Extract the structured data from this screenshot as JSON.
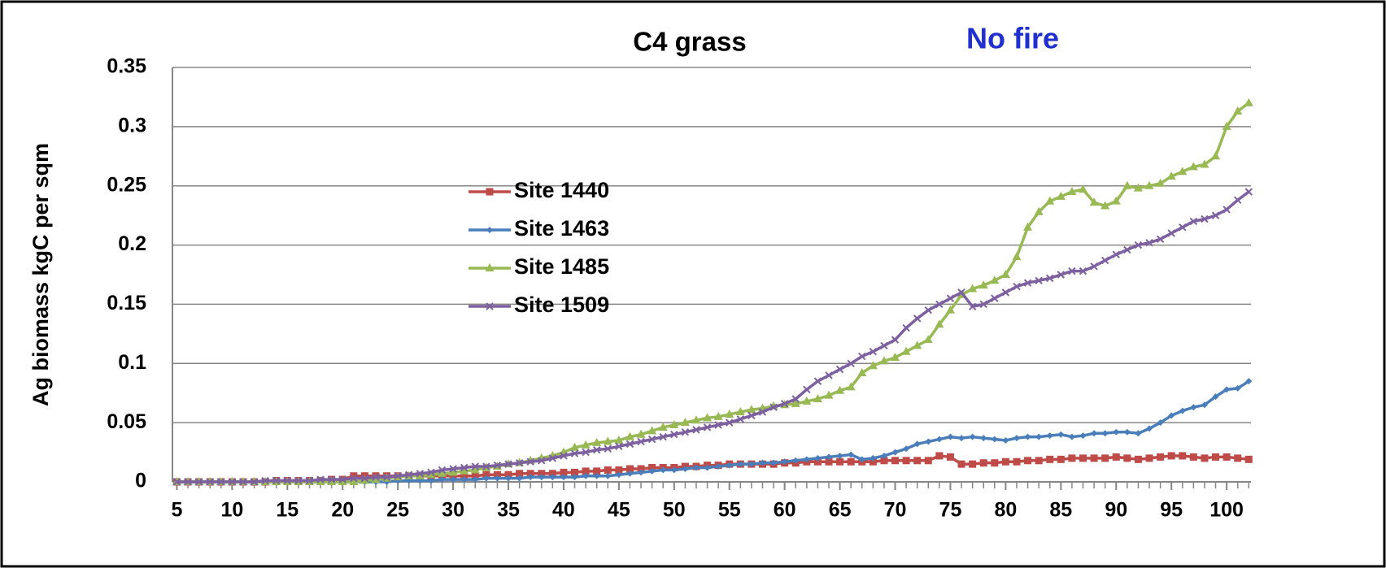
{
  "chart_data": {
    "type": "line",
    "title": "C4 grass",
    "annotation": "No fire",
    "ylabel": "Ag biomass kgC per sqm",
    "x": [
      5,
      6,
      7,
      8,
      9,
      10,
      11,
      12,
      13,
      14,
      15,
      16,
      17,
      18,
      19,
      20,
      21,
      22,
      23,
      24,
      25,
      26,
      27,
      28,
      29,
      30,
      31,
      32,
      33,
      34,
      35,
      36,
      37,
      38,
      39,
      40,
      41,
      42,
      43,
      44,
      45,
      46,
      47,
      48,
      49,
      50,
      51,
      52,
      53,
      54,
      55,
      56,
      57,
      58,
      59,
      60,
      61,
      62,
      63,
      64,
      65,
      66,
      67,
      68,
      69,
      70,
      71,
      72,
      73,
      74,
      75,
      76,
      77,
      78,
      79,
      80,
      81,
      82,
      83,
      84,
      85,
      86,
      87,
      88,
      89,
      90,
      91,
      92,
      93,
      94,
      95,
      96,
      97,
      98,
      99,
      100,
      101,
      102
    ],
    "series": [
      {
        "name": "Site 1440",
        "color": "#be4b48",
        "marker": "square",
        "values": [
          0,
          0,
          0,
          0,
          0,
          0,
          0,
          0,
          0,
          0.001,
          0.001,
          0.001,
          0.001,
          0.001,
          0.002,
          0.002,
          0.005,
          0.005,
          0.005,
          0.005,
          0.005,
          0.005,
          0.005,
          0.005,
          0.005,
          0.005,
          0.005,
          0.005,
          0.006,
          0.006,
          0.006,
          0.007,
          0.007,
          0.007,
          0.007,
          0.008,
          0.008,
          0.009,
          0.009,
          0.01,
          0.01,
          0.011,
          0.011,
          0.012,
          0.012,
          0.012,
          0.013,
          0.013,
          0.014,
          0.014,
          0.015,
          0.015,
          0.015,
          0.015,
          0.015,
          0.016,
          0.016,
          0.017,
          0.017,
          0.017,
          0.017,
          0.017,
          0.017,
          0.017,
          0.018,
          0.018,
          0.018,
          0.018,
          0.018,
          0.022,
          0.021,
          0.015,
          0.015,
          0.016,
          0.016,
          0.017,
          0.017,
          0.018,
          0.018,
          0.019,
          0.019,
          0.02,
          0.02,
          0.02,
          0.02,
          0.021,
          0.02,
          0.019,
          0.02,
          0.021,
          0.022,
          0.022,
          0.021,
          0.02,
          0.021,
          0.021,
          0.02,
          0.019
        ]
      },
      {
        "name": "Site 1463",
        "color": "#4a7ebb",
        "marker": "diamond",
        "values": [
          0,
          0,
          0,
          0,
          0,
          0,
          0,
          0,
          0,
          0,
          0,
          0,
          0,
          0,
          0,
          0,
          0,
          0,
          0,
          0,
          0.001,
          0.001,
          0.001,
          0.001,
          0.002,
          0.002,
          0.002,
          0.002,
          0.003,
          0.003,
          0.003,
          0.003,
          0.004,
          0.004,
          0.004,
          0.004,
          0.004,
          0.005,
          0.005,
          0.005,
          0.006,
          0.007,
          0.008,
          0.009,
          0.01,
          0.01,
          0.011,
          0.012,
          0.012,
          0.013,
          0.014,
          0.015,
          0.015,
          0.016,
          0.016,
          0.017,
          0.018,
          0.019,
          0.02,
          0.021,
          0.022,
          0.023,
          0.019,
          0.02,
          0.022,
          0.025,
          0.028,
          0.032,
          0.034,
          0.036,
          0.038,
          0.037,
          0.038,
          0.037,
          0.036,
          0.035,
          0.037,
          0.038,
          0.038,
          0.039,
          0.04,
          0.038,
          0.039,
          0.041,
          0.041,
          0.042,
          0.042,
          0.041,
          0.045,
          0.05,
          0.056,
          0.06,
          0.063,
          0.065,
          0.072,
          0.078,
          0.079,
          0.085
        ]
      },
      {
        "name": "Site 1485",
        "color": "#98b954",
        "marker": "triangle",
        "values": [
          0,
          0,
          0,
          0,
          0,
          0,
          0,
          0,
          0,
          0,
          0,
          0,
          0,
          0,
          0,
          0,
          0,
          0.001,
          0.002,
          0.003,
          0.004,
          0.005,
          0.005,
          0.006,
          0.007,
          0.008,
          0.009,
          0.01,
          0.012,
          0.013,
          0.015,
          0.016,
          0.018,
          0.02,
          0.022,
          0.025,
          0.029,
          0.031,
          0.033,
          0.034,
          0.035,
          0.038,
          0.04,
          0.043,
          0.046,
          0.048,
          0.05,
          0.052,
          0.054,
          0.055,
          0.057,
          0.059,
          0.061,
          0.062,
          0.064,
          0.065,
          0.066,
          0.068,
          0.07,
          0.073,
          0.077,
          0.08,
          0.092,
          0.098,
          0.102,
          0.105,
          0.11,
          0.115,
          0.12,
          0.133,
          0.145,
          0.158,
          0.163,
          0.166,
          0.17,
          0.175,
          0.19,
          0.215,
          0.228,
          0.237,
          0.241,
          0.245,
          0.247,
          0.236,
          0.233,
          0.237,
          0.25,
          0.248,
          0.25,
          0.252,
          0.258,
          0.262,
          0.266,
          0.268,
          0.275,
          0.3,
          0.313,
          0.32
        ]
      },
      {
        "name": "Site 1509",
        "color": "#7d60a0",
        "marker": "cross",
        "values": [
          0,
          0,
          0,
          0,
          0,
          0,
          0,
          0,
          0.001,
          0.001,
          0.001,
          0.001,
          0.001,
          0.002,
          0.002,
          0.002,
          0.003,
          0.003,
          0.004,
          0.004,
          0.005,
          0.006,
          0.007,
          0.008,
          0.01,
          0.011,
          0.012,
          0.013,
          0.013,
          0.014,
          0.015,
          0.016,
          0.017,
          0.018,
          0.02,
          0.022,
          0.024,
          0.025,
          0.027,
          0.028,
          0.03,
          0.032,
          0.034,
          0.036,
          0.038,
          0.04,
          0.042,
          0.044,
          0.046,
          0.048,
          0.05,
          0.053,
          0.056,
          0.059,
          0.063,
          0.066,
          0.07,
          0.078,
          0.085,
          0.09,
          0.095,
          0.1,
          0.106,
          0.11,
          0.115,
          0.12,
          0.13,
          0.138,
          0.145,
          0.15,
          0.155,
          0.16,
          0.148,
          0.15,
          0.155,
          0.16,
          0.165,
          0.168,
          0.17,
          0.172,
          0.175,
          0.178,
          0.178,
          0.182,
          0.187,
          0.192,
          0.196,
          0.2,
          0.202,
          0.205,
          0.21,
          0.215,
          0.22,
          0.222,
          0.225,
          0.23,
          0.238,
          0.245
        ]
      }
    ],
    "xlim": [
      4.6,
      102.2
    ],
    "xticks": [
      5,
      10,
      15,
      20,
      25,
      30,
      35,
      40,
      45,
      50,
      55,
      60,
      65,
      70,
      75,
      80,
      85,
      90,
      95,
      100
    ],
    "ylim": [
      0,
      0.35
    ],
    "yticks": [
      0,
      0.05,
      0.1,
      0.15,
      0.2,
      0.25,
      0.3,
      0.35
    ],
    "grid": true,
    "legend": "center left"
  }
}
